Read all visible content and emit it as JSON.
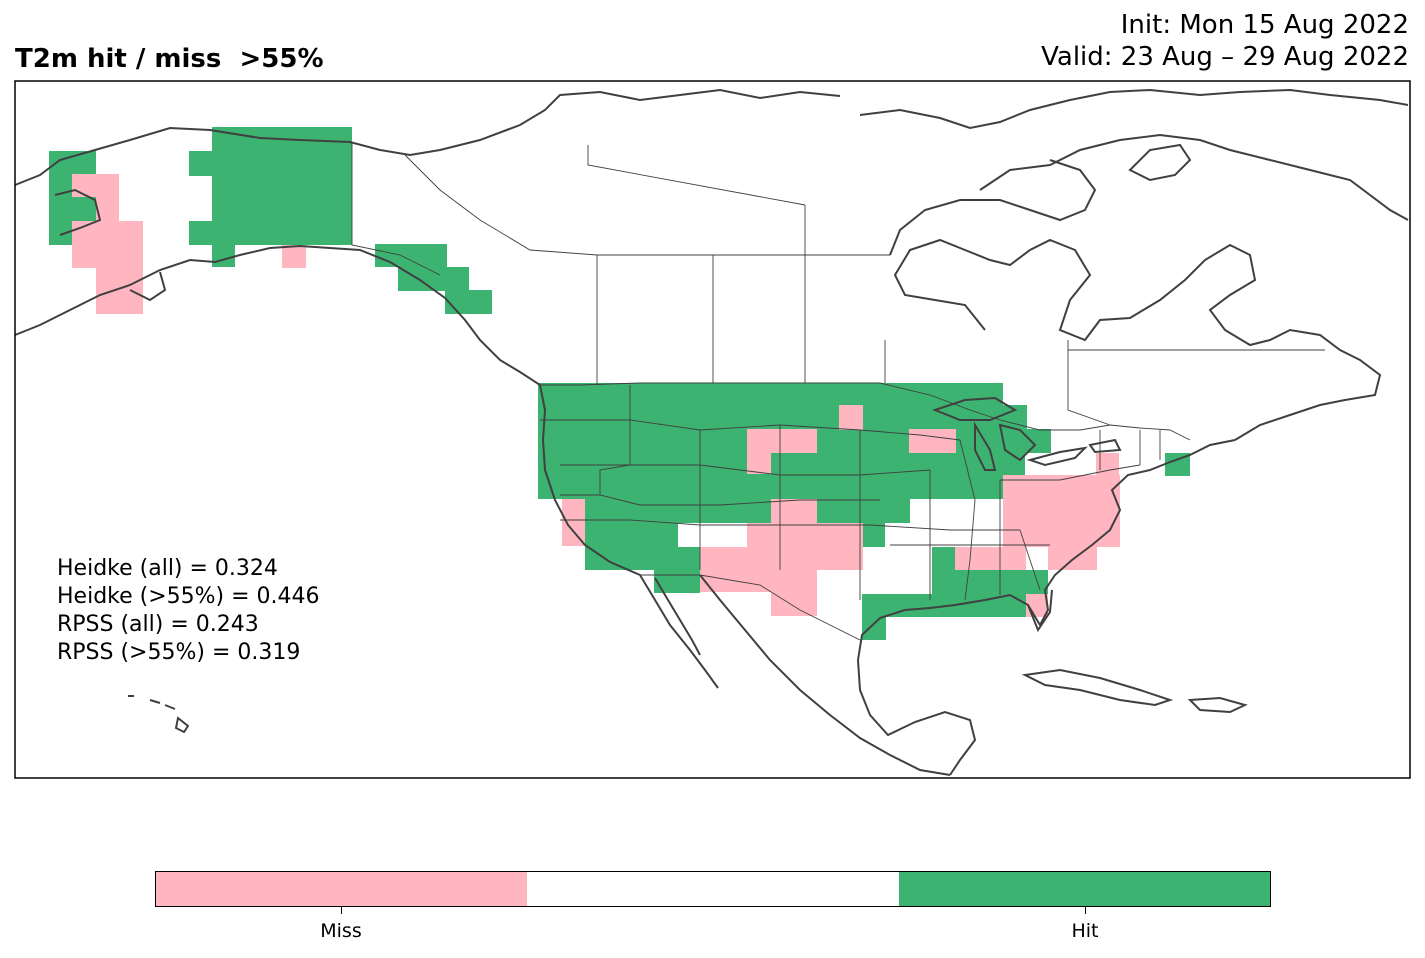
{
  "header": {
    "title": "T2m hit / miss  >55%",
    "init": "Init: Mon 15 Aug 2022",
    "valid": "Valid: 23 Aug – 29 Aug 2022"
  },
  "stats": [
    "Heidke (all) = 0.324",
    "Heidke (>55%) = 0.446",
    "RPSS (all) = 0.243",
    "RPSS (>55%) = 0.319"
  ],
  "colors": {
    "hit": "#3cb371",
    "miss": "#ffb6c1",
    "neutral": "#ffffff",
    "coastline": "#404040"
  },
  "legend": {
    "categories": [
      {
        "label": "Miss",
        "color": "#ffb6c1"
      },
      {
        "label": "",
        "color": "#ffffff"
      },
      {
        "label": "Hit",
        "color": "#3cb371"
      }
    ],
    "tick_labels": [
      "Miss",
      "Hit"
    ]
  }
}
